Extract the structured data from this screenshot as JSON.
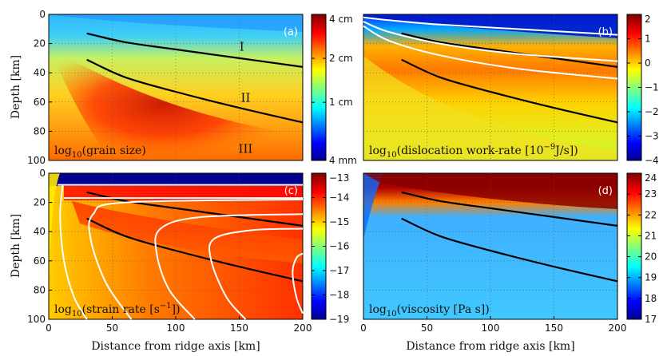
{
  "chart_data": [
    {
      "type": "heatmap",
      "panel": "(a)",
      "title": "log10(grain size)",
      "label_main": "log",
      "label_sub": "10",
      "label_rest": "(grain size)",
      "xlabel": "",
      "ylabel": "Depth [km]",
      "xlim": [
        0,
        200
      ],
      "ylim": [
        100,
        0
      ],
      "xticks": [],
      "yticks": [
        0,
        20,
        40,
        60,
        80,
        100
      ],
      "colorbar": {
        "scale": "log",
        "ticks": [
          "4 cm",
          "2 cm",
          "1 cm",
          "4 mm"
        ]
      },
      "region_labels": [
        {
          "text": "I",
          "x": 152,
          "y": 22
        },
        {
          "text": "II",
          "x": 155,
          "y": 57
        },
        {
          "text": "III",
          "x": 155,
          "y": 92
        }
      ],
      "boundaries": [
        {
          "x": [
            30,
            60,
            100,
            150,
            200
          ],
          "y": [
            13,
            19,
            24,
            30,
            36
          ]
        },
        {
          "x": [
            30,
            60,
            100,
            150,
            200
          ],
          "y": [
            31,
            43,
            53,
            64,
            74
          ]
        }
      ],
      "white_contours": []
    },
    {
      "type": "heatmap",
      "panel": "(b)",
      "title": "log10(dislocation work-rate [10^-9 J/s])",
      "label_main": "log",
      "label_sub": "10",
      "label_rest": "(dislocation work-rate [10",
      "label_sup": "−9",
      "label_tail": "J/s])",
      "xlabel": "",
      "ylabel": "",
      "xlim": [
        0,
        200
      ],
      "ylim": [
        100,
        0
      ],
      "xticks": [],
      "yticks": [],
      "colorbar": {
        "scale": "linear",
        "ticks": [
          "2",
          "1",
          "0",
          "−1",
          "−2",
          "−3",
          "−4"
        ]
      },
      "region_labels": [],
      "boundaries": [
        {
          "x": [
            30,
            60,
            100,
            150,
            200
          ],
          "y": [
            13,
            19,
            24,
            30,
            36
          ]
        },
        {
          "x": [
            30,
            60,
            100,
            150,
            200
          ],
          "y": [
            31,
            43,
            53,
            64,
            74
          ]
        }
      ],
      "white_contours": [
        {
          "x": [
            0,
            20,
            60,
            120,
            200
          ],
          "y": [
            2,
            4,
            7,
            10,
            14
          ]
        },
        {
          "x": [
            0,
            20,
            60,
            120,
            200
          ],
          "y": [
            5,
            12,
            20,
            27,
            32
          ]
        },
        {
          "x": [
            0,
            20,
            60,
            120,
            200
          ],
          "y": [
            8,
            18,
            28,
            37,
            44
          ]
        }
      ]
    },
    {
      "type": "heatmap",
      "panel": "(c)",
      "title": "log10(strain rate [s^-1])",
      "label_main": "log",
      "label_sub": "10",
      "label_rest": "(strain rate [s",
      "label_sup": "−1",
      "label_tail": "])",
      "xlabel": "Distance from ridge axis [km]",
      "ylabel": "Depth [km]",
      "xlim": [
        0,
        200
      ],
      "ylim": [
        100,
        0
      ],
      "xticks": [
        0,
        50,
        100,
        150,
        200
      ],
      "yticks": [
        0,
        20,
        40,
        60,
        80,
        100
      ],
      "colorbar": {
        "scale": "linear",
        "ticks": [
          "−13",
          "−14",
          "−15",
          "−16",
          "−17",
          "−18",
          "−19"
        ]
      },
      "region_labels": [],
      "boundaries": [
        {
          "x": [
            30,
            60,
            100,
            150,
            200
          ],
          "y": [
            13,
            19,
            24,
            30,
            36
          ]
        },
        {
          "x": [
            30,
            60,
            100,
            150,
            200
          ],
          "y": [
            31,
            43,
            53,
            64,
            74
          ]
        }
      ],
      "white_contours": [
        {
          "x": [
            7,
            200
          ],
          "y": [
            8,
            8
          ]
        },
        {
          "x": [
            12,
            200
          ],
          "y": [
            17,
            17
          ]
        },
        {
          "x": [
            11,
            9,
            12,
            20,
            30
          ],
          "y": [
            8,
            30,
            60,
            85,
            100
          ]
        },
        {
          "x": [
            200,
            60,
            35,
            33,
            45,
            65
          ],
          "y": [
            18,
            20,
            28,
            45,
            75,
            100
          ]
        },
        {
          "x": [
            200,
            120,
            88,
            85,
            95,
            115
          ],
          "y": [
            28,
            30,
            38,
            55,
            80,
            100
          ]
        },
        {
          "x": [
            200,
            160,
            130,
            128,
            140,
            155
          ],
          "y": [
            38,
            39,
            45,
            60,
            85,
            100
          ]
        },
        {
          "x": [
            200,
            195,
            192,
            195,
            200
          ],
          "y": [
            55,
            58,
            68,
            85,
            96
          ]
        }
      ]
    },
    {
      "type": "heatmap",
      "panel": "(d)",
      "title": "log10(viscosity [Pa s])",
      "label_main": "log",
      "label_sub": "10",
      "label_rest": "(viscosity [Pa s])",
      "xlabel": "Distance from ridge axis [km]",
      "ylabel": "",
      "xlim": [
        0,
        200
      ],
      "ylim": [
        100,
        0
      ],
      "xticks": [
        0,
        50,
        100,
        150,
        200
      ],
      "yticks": [],
      "colorbar": {
        "scale": "linear",
        "ticks": [
          "24",
          "23",
          "22",
          "21",
          "20",
          "19",
          "18",
          "17"
        ]
      },
      "region_labels": [],
      "boundaries": [
        {
          "x": [
            30,
            60,
            100,
            150,
            200
          ],
          "y": [
            13,
            19,
            24,
            30,
            36
          ]
        },
        {
          "x": [
            30,
            60,
            100,
            150,
            200
          ],
          "y": [
            31,
            43,
            53,
            64,
            74
          ]
        }
      ],
      "white_contours": []
    }
  ]
}
